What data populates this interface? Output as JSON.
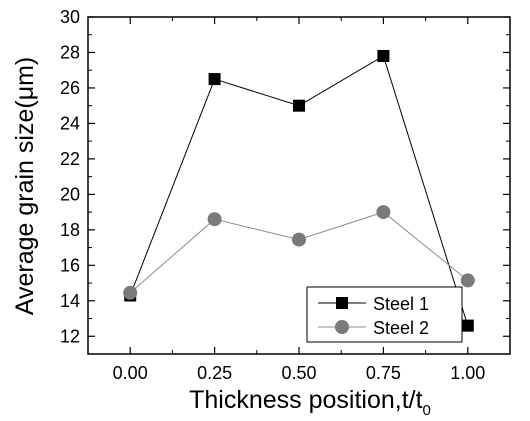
{
  "chart_data": {
    "type": "line",
    "title": "",
    "xlabel": "Thickness position,t/t",
    "xlabel_subscript": "0",
    "ylabel": "Average grain size(μm)",
    "x": [
      0.0,
      0.25,
      0.5,
      0.75,
      1.0
    ],
    "x_tick_labels": [
      "0.00",
      "0.25",
      "0.50",
      "0.75",
      "1.00"
    ],
    "y_tick_labels": [
      "12",
      "14",
      "16",
      "18",
      "20",
      "22",
      "24",
      "26",
      "28",
      "30"
    ],
    "xlim": [
      -0.125,
      1.125
    ],
    "ylim": [
      11.0,
      30.0
    ],
    "grid": false,
    "legend_position": "bottom-right",
    "series": [
      {
        "name": "Steel 1",
        "marker": "square",
        "color": "#000000",
        "line_color": "#000000",
        "values": [
          14.3,
          26.5,
          25.0,
          27.8,
          12.6
        ]
      },
      {
        "name": "Steel 2",
        "marker": "circle",
        "color": "#7a7a7a",
        "line_color": "#8c8c8c",
        "values": [
          14.45,
          18.6,
          17.45,
          19.0,
          15.15
        ]
      }
    ]
  }
}
